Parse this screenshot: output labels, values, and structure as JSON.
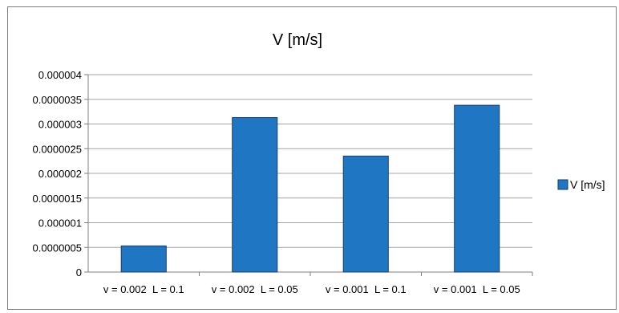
{
  "chart_data": {
    "type": "bar",
    "title": "V [m/s]",
    "xlabel": "",
    "ylabel": "",
    "categories": [
      "v = 0.002  L = 0.1",
      "v = 0.002  L = 0.05",
      "v = 0.001  L = 0.1",
      "v = 0.001  L = 0.05"
    ],
    "series": [
      {
        "name": "V [m/s]",
        "values": [
          5.3e-07,
          3.13e-06,
          2.35e-06,
          3.38e-06
        ],
        "color": "#1f77c4"
      }
    ],
    "ylim": [
      0,
      4e-06
    ],
    "yticks": [
      0,
      5e-07,
      1e-06,
      1.5e-06,
      2e-06,
      2.5e-06,
      3e-06,
      3.5e-06,
      4e-06
    ],
    "ytick_labels": [
      "0",
      "0.0000005",
      "0.000001",
      "0.0000015",
      "0.000002",
      "0.0000025",
      "0.000003",
      "0.0000035",
      "0.000004"
    ],
    "grid": true,
    "legend_position": "right"
  }
}
